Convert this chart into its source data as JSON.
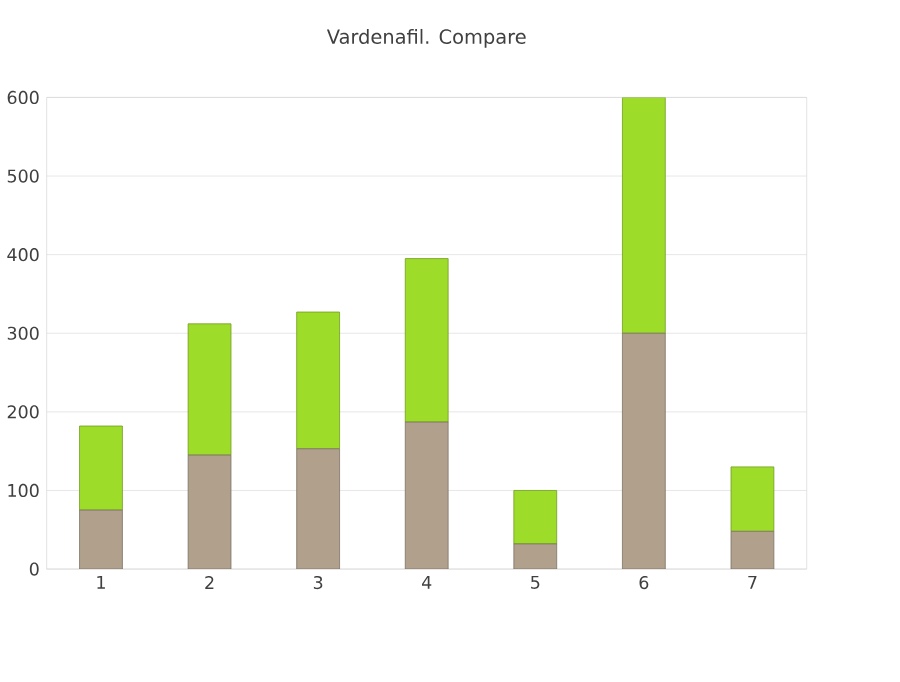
{
  "chart_data": {
    "type": "bar",
    "title": "Vardenafil. Compare",
    "stacked": true,
    "categories": [
      "1",
      "2",
      "3",
      "4",
      "5",
      "6",
      "7"
    ],
    "series": [
      {
        "color": "#b0a08c",
        "values": [
          75,
          145,
          153,
          187,
          32,
          300,
          48
        ]
      },
      {
        "color": "#9edc2a",
        "values": [
          107,
          167,
          174,
          208,
          68,
          300,
          82
        ]
      }
    ],
    "ylim": [
      0,
      600
    ],
    "yticks": [
      0,
      100,
      200,
      300,
      400,
      500,
      600
    ],
    "grid": "y"
  }
}
